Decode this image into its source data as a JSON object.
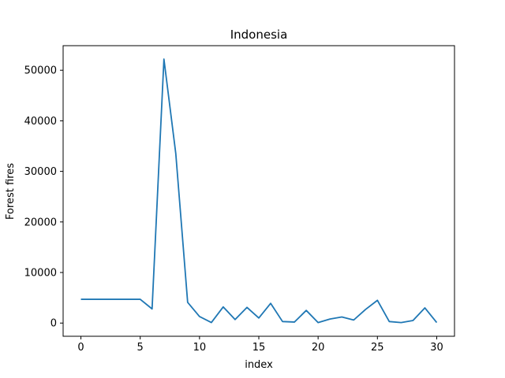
{
  "chart_data": {
    "type": "line",
    "title": "Indonesia",
    "xlabel": "index",
    "ylabel": "Forest fires",
    "xlim": [
      -1.5,
      31.5
    ],
    "ylim": [
      -2610,
      54860
    ],
    "xticks": [
      0,
      5,
      10,
      15,
      20,
      25,
      30
    ],
    "yticks": [
      0,
      10000,
      20000,
      30000,
      40000,
      50000
    ],
    "xtick_labels": [
      "0",
      "5",
      "10",
      "15",
      "20",
      "25",
      "30"
    ],
    "ytick_labels": [
      "0",
      "10000",
      "20000",
      "30000",
      "40000",
      "50000"
    ],
    "grid": false,
    "legend": "none",
    "line_color": "#1f77b4",
    "series": [
      {
        "x": [
          0,
          1,
          2,
          3,
          4,
          5,
          6,
          7,
          8,
          9,
          10,
          11,
          12,
          13,
          14,
          15,
          16,
          17,
          18,
          19,
          20,
          21,
          22,
          23,
          24,
          25,
          26,
          27,
          28,
          29,
          30
        ],
        "values": [
          4700,
          4700,
          4700,
          4700,
          4700,
          4700,
          2800,
          52200,
          33500,
          4100,
          1300,
          100,
          3200,
          700,
          3100,
          1000,
          3900,
          300,
          200,
          2500,
          100,
          800,
          1200,
          600,
          2700,
          4500,
          300,
          100,
          500,
          3000,
          100
        ]
      }
    ]
  }
}
